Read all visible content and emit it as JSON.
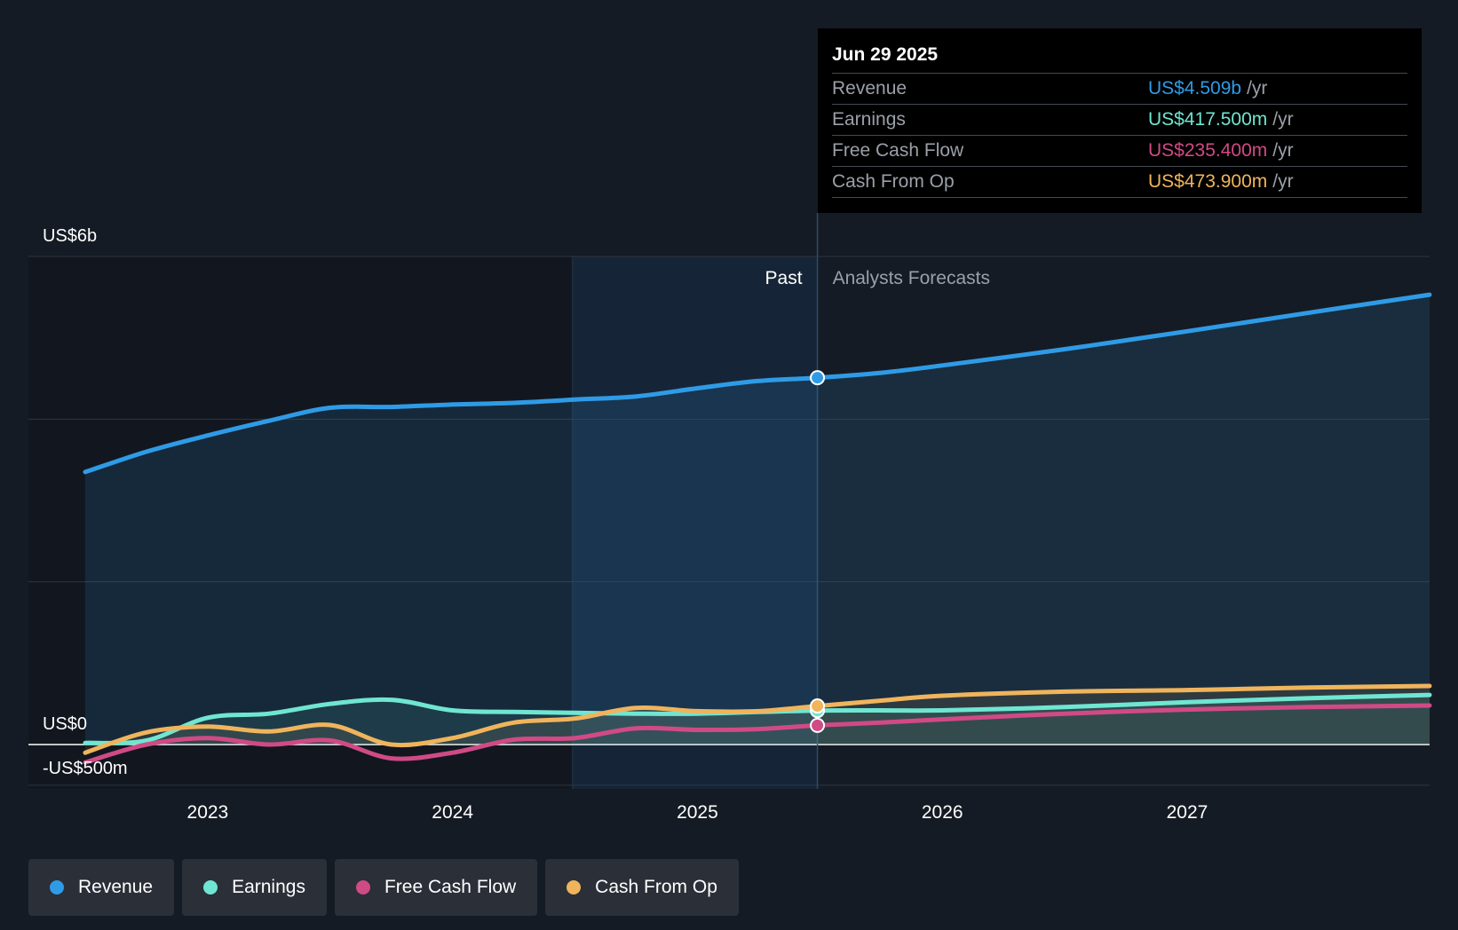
{
  "colors": {
    "revenue": "#2f9be6",
    "earnings": "#6fe6d2",
    "fcf": "#d04a86",
    "cfo": "#f0b45c",
    "background": "#151b24"
  },
  "tooltip": {
    "date": "Jun 29 2025",
    "rows": [
      {
        "label": "Revenue",
        "value": "US$4.509b",
        "unit": "/yr"
      },
      {
        "label": "Earnings",
        "value": "US$417.500m",
        "unit": "/yr"
      },
      {
        "label": "Free Cash Flow",
        "value": "US$235.400m",
        "unit": "/yr"
      },
      {
        "label": "Cash From Op",
        "value": "US$473.900m",
        "unit": "/yr"
      }
    ]
  },
  "legend": [
    {
      "label": "Revenue",
      "color": "#2f9be6"
    },
    {
      "label": "Earnings",
      "color": "#6fe6d2"
    },
    {
      "label": "Free Cash Flow",
      "color": "#d04a86"
    },
    {
      "label": "Cash From Op",
      "color": "#f0b45c"
    }
  ],
  "chart_data": {
    "type": "line",
    "title": "",
    "xlabel": "",
    "ylabel": "",
    "ylim": [
      -0.5,
      6.0
    ],
    "y_unit": "US$ billions",
    "x_range": [
      2022.5,
      2027.99
    ],
    "y_axis_labels": [
      {
        "value": 6.0,
        "label": "US$6b"
      },
      {
        "value": 0.0,
        "label": "US$0"
      },
      {
        "value": -0.5,
        "label": "-US$500m"
      }
    ],
    "gridlines": [
      6.0,
      4.0,
      2.0,
      0.0,
      -0.5
    ],
    "x_ticks": [
      2023,
      2024,
      2025,
      2026,
      2027
    ],
    "x_tick_labels": [
      "2023",
      "2024",
      "2025",
      "2026",
      "2027"
    ],
    "past_label": "Past",
    "forecast_label": "Analysts Forecasts",
    "divider_x": 2025.49,
    "highlight_start_x": 2024.49,
    "series": [
      {
        "name": "Revenue",
        "key": "revenue",
        "points": [
          [
            2022.5,
            3.35
          ],
          [
            2022.75,
            3.6
          ],
          [
            2023.0,
            3.8
          ],
          [
            2023.25,
            3.98
          ],
          [
            2023.5,
            4.14
          ],
          [
            2023.75,
            4.15
          ],
          [
            2024.0,
            4.18
          ],
          [
            2024.25,
            4.2
          ],
          [
            2024.5,
            4.24
          ],
          [
            2024.75,
            4.28
          ],
          [
            2025.0,
            4.38
          ],
          [
            2025.25,
            4.47
          ],
          [
            2025.49,
            4.509
          ],
          [
            2025.75,
            4.57
          ],
          [
            2026.0,
            4.66
          ],
          [
            2026.5,
            4.86
          ],
          [
            2027.0,
            5.08
          ],
          [
            2027.5,
            5.31
          ],
          [
            2027.99,
            5.53
          ]
        ]
      },
      {
        "name": "Earnings",
        "key": "earnings",
        "points": [
          [
            2022.5,
            0.02
          ],
          [
            2022.75,
            0.05
          ],
          [
            2023.0,
            0.33
          ],
          [
            2023.25,
            0.38
          ],
          [
            2023.5,
            0.5
          ],
          [
            2023.75,
            0.55
          ],
          [
            2024.0,
            0.42
          ],
          [
            2024.25,
            0.4
          ],
          [
            2024.5,
            0.39
          ],
          [
            2024.75,
            0.38
          ],
          [
            2025.0,
            0.38
          ],
          [
            2025.25,
            0.4
          ],
          [
            2025.49,
            0.4175
          ],
          [
            2025.75,
            0.42
          ],
          [
            2026.0,
            0.42
          ],
          [
            2026.5,
            0.46
          ],
          [
            2027.0,
            0.52
          ],
          [
            2027.5,
            0.57
          ],
          [
            2027.99,
            0.61
          ]
        ]
      },
      {
        "name": "Free Cash Flow",
        "key": "fcf",
        "points": [
          [
            2022.5,
            -0.22
          ],
          [
            2022.75,
            0.0
          ],
          [
            2023.0,
            0.08
          ],
          [
            2023.25,
            0.0
          ],
          [
            2023.5,
            0.05
          ],
          [
            2023.75,
            -0.17
          ],
          [
            2024.0,
            -0.1
          ],
          [
            2024.25,
            0.06
          ],
          [
            2024.5,
            0.08
          ],
          [
            2024.75,
            0.2
          ],
          [
            2025.0,
            0.18
          ],
          [
            2025.25,
            0.19
          ],
          [
            2025.49,
            0.2354
          ],
          [
            2025.75,
            0.27
          ],
          [
            2026.0,
            0.31
          ],
          [
            2026.5,
            0.38
          ],
          [
            2027.0,
            0.43
          ],
          [
            2027.5,
            0.46
          ],
          [
            2027.99,
            0.48
          ]
        ]
      },
      {
        "name": "Cash From Op",
        "key": "cfo",
        "points": [
          [
            2022.5,
            -0.1
          ],
          [
            2022.75,
            0.15
          ],
          [
            2023.0,
            0.22
          ],
          [
            2023.25,
            0.16
          ],
          [
            2023.5,
            0.24
          ],
          [
            2023.75,
            0.0
          ],
          [
            2024.0,
            0.08
          ],
          [
            2024.25,
            0.27
          ],
          [
            2024.5,
            0.32
          ],
          [
            2024.75,
            0.45
          ],
          [
            2025.0,
            0.41
          ],
          [
            2025.25,
            0.41
          ],
          [
            2025.49,
            0.4739
          ],
          [
            2025.75,
            0.54
          ],
          [
            2026.0,
            0.6
          ],
          [
            2026.5,
            0.65
          ],
          [
            2027.0,
            0.67
          ],
          [
            2027.5,
            0.7
          ],
          [
            2027.99,
            0.72
          ]
        ]
      }
    ]
  }
}
